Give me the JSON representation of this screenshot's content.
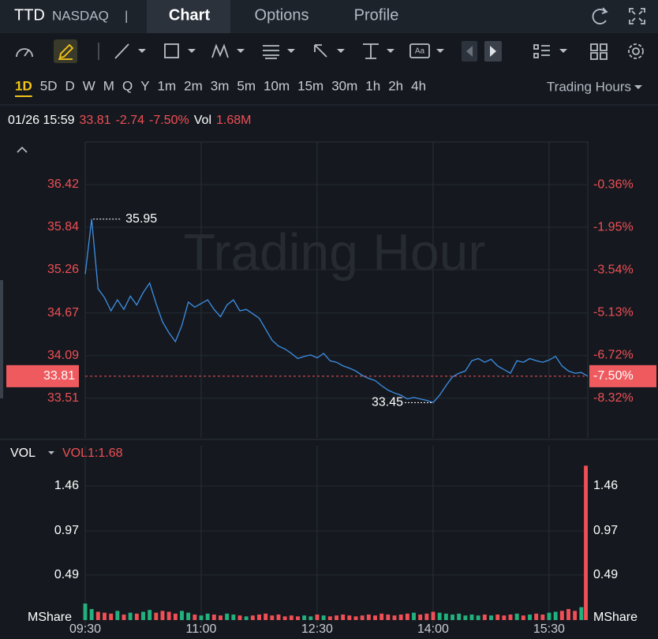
{
  "header": {
    "symbol": "TTD",
    "exchange": "NASDAQ",
    "separator": "|",
    "tabs": [
      "Chart",
      "Options",
      "Profile"
    ]
  },
  "toolbar": {
    "text_icon": "Aa"
  },
  "timeframes": {
    "options": [
      "1D",
      "5D",
      "D",
      "W",
      "M",
      "Q",
      "Y",
      "1m",
      "2m",
      "3m",
      "5m",
      "10m",
      "15m",
      "30m",
      "1h",
      "2h",
      "4h"
    ],
    "active": "1D",
    "session": "Trading Hours"
  },
  "info": {
    "datetime": "01/26 15:59",
    "price": 33.81,
    "change": -2.74,
    "change_pct": "-7.50%",
    "vol_label": "Vol",
    "volume": "1.68M"
  },
  "watermark": "Trading Hour",
  "price_chart": {
    "type": "line",
    "color": "#3d8fe6",
    "values": [
      35.2,
      35.95,
      35.0,
      34.88,
      34.7,
      34.85,
      34.72,
      34.9,
      34.78,
      34.95,
      35.08,
      34.8,
      34.55,
      34.4,
      34.28,
      34.5,
      34.82,
      34.75,
      34.8,
      34.85,
      34.72,
      34.62,
      34.78,
      34.85,
      34.7,
      34.72,
      34.66,
      34.6,
      34.45,
      34.3,
      34.22,
      34.18,
      34.12,
      34.05,
      34.08,
      34.1,
      34.06,
      34.12,
      34.02,
      34.0,
      33.95,
      33.92,
      33.88,
      33.82,
      33.78,
      33.75,
      33.68,
      33.62,
      33.58,
      33.55,
      33.5,
      33.52,
      33.5,
      33.48,
      33.45,
      33.55,
      33.68,
      33.8,
      33.85,
      33.88,
      34.02,
      34.05,
      34.0,
      34.04,
      33.95,
      33.9,
      33.85,
      34.02,
      34.0,
      34.05,
      34.02,
      34.0,
      34.03,
      34.08,
      33.95,
      33.88,
      33.85,
      33.86,
      33.81
    ],
    "ylim": [
      32.97,
      37.0
    ],
    "yticks": [
      36.42,
      35.84,
      35.26,
      34.67,
      34.09,
      33.51
    ],
    "y2lim": [
      -9.79,
      1.23
    ],
    "y2ticks": [
      {
        "value": -0.36,
        "label": "-0.36%"
      },
      {
        "value": -1.95,
        "label": "-1.95%"
      },
      {
        "value": -3.54,
        "label": "-3.54%"
      },
      {
        "value": -5.13,
        "label": "-5.13%"
      },
      {
        "value": -6.72,
        "label": "-6.72%"
      },
      {
        "value": -8.32,
        "label": "-8.32%"
      }
    ],
    "xticks": [
      "09:30",
      "11:00",
      "12:30",
      "14:00",
      "15:30"
    ],
    "grid": true
  },
  "volume_chart": {
    "type": "bar",
    "indicator": "VOL",
    "legend": "VOL1:1.68",
    "unit": "MShare",
    "up_color": "#22b07d",
    "down_color": "#ef4f55",
    "values": [
      0.18,
      0.12,
      0.09,
      0.08,
      0.07,
      0.1,
      0.06,
      0.08,
      0.07,
      0.09,
      0.11,
      0.08,
      0.1,
      0.09,
      0.07,
      0.1,
      0.08,
      0.06,
      0.05,
      0.07,
      0.06,
      0.05,
      0.07,
      0.06,
      0.05,
      0.04,
      0.05,
      0.06,
      0.07,
      0.05,
      0.06,
      0.04,
      0.05,
      0.04,
      0.05,
      0.04,
      0.06,
      0.05,
      0.04,
      0.05,
      0.06,
      0.05,
      0.04,
      0.05,
      0.06,
      0.05,
      0.07,
      0.06,
      0.05,
      0.06,
      0.07,
      0.08,
      0.06,
      0.07,
      0.09,
      0.08,
      0.07,
      0.06,
      0.07,
      0.05,
      0.06,
      0.05,
      0.06,
      0.05,
      0.06,
      0.05,
      0.06,
      0.07,
      0.05,
      0.06,
      0.07,
      0.06,
      0.08,
      0.09,
      0.1,
      0.12,
      0.1,
      0.14,
      1.68
    ],
    "ylim": [
      0,
      1.7
    ],
    "yticks": [
      1.46,
      0.97,
      0.49
    ]
  }
}
